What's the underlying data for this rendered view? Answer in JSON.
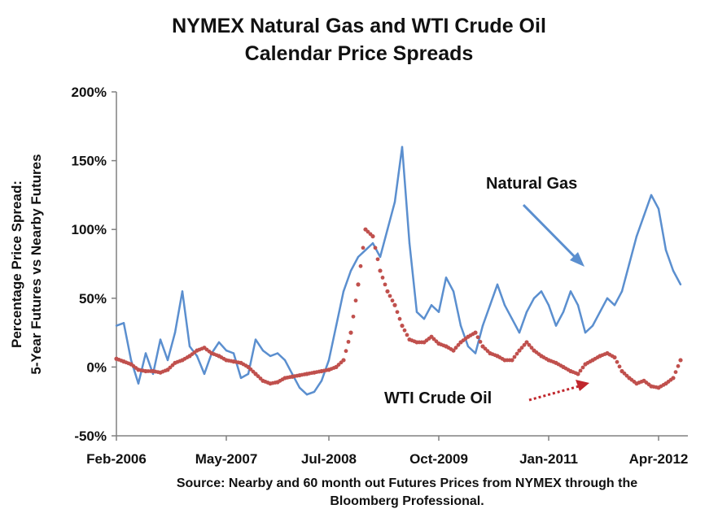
{
  "title_line1": "NYMEX Natural Gas and WTI Crude Oil",
  "title_line2": "Calendar Price Spreads",
  "source_line1": "Source:  Nearby and 60 month out Futures Prices from NYMEX through the",
  "source_line2": "Bloomberg Professional.",
  "colors": {
    "natural_gas": "#5b8fcf",
    "wti": "#c0504d",
    "wti_label": "#c0262c",
    "axis": "#808080"
  },
  "chart_data": {
    "type": "line",
    "title": "NYMEX Natural Gas and WTI Crude Oil Calendar Price Spreads",
    "ylabel_line1": "Percentage Price Spread:",
    "ylabel_line2": "5-Year Futures vs Nearby Futures",
    "xlabel": "",
    "ylim": [
      -50,
      200
    ],
    "ylim_units": "percent",
    "yticks": [
      -50,
      0,
      50,
      100,
      150,
      200
    ],
    "ytick_labels": [
      "-50%",
      "0%",
      "50%",
      "100%",
      "150%",
      "200%"
    ],
    "xlim": [
      "2006-02",
      "2012-08"
    ],
    "xticks": [
      "2006-02",
      "2007-05",
      "2008-07",
      "2009-10",
      "2011-01",
      "2012-04"
    ],
    "xtick_labels": [
      "Feb-2006",
      "May-2007",
      "Jul-2008",
      "Oct-2009",
      "Jan-2011",
      "Apr-2012"
    ],
    "grid": false,
    "legend": "none",
    "annotations": [
      {
        "text": "Natural Gas",
        "points_to": "Natural Gas series near Jul-2011",
        "arrow": "solid"
      },
      {
        "text": "WTI Crude Oil",
        "points_to": "WTI Crude Oil series near Sep-2011",
        "arrow": "dotted"
      }
    ],
    "series": [
      {
        "name": "Natural Gas",
        "style": "line",
        "x": [
          "2006-02",
          "2006-03",
          "2006-04",
          "2006-05",
          "2006-06",
          "2006-07",
          "2006-08",
          "2006-09",
          "2006-10",
          "2006-11",
          "2006-12",
          "2007-01",
          "2007-02",
          "2007-03",
          "2007-04",
          "2007-05",
          "2007-06",
          "2007-07",
          "2007-08",
          "2007-09",
          "2007-10",
          "2007-11",
          "2007-12",
          "2008-01",
          "2008-02",
          "2008-03",
          "2008-04",
          "2008-05",
          "2008-06",
          "2008-07",
          "2008-08",
          "2008-09",
          "2008-10",
          "2008-11",
          "2008-12",
          "2009-01",
          "2009-02",
          "2009-03",
          "2009-04",
          "2009-05",
          "2009-06",
          "2009-07",
          "2009-08",
          "2009-09",
          "2009-10",
          "2009-11",
          "2009-12",
          "2010-01",
          "2010-02",
          "2010-03",
          "2010-04",
          "2010-05",
          "2010-06",
          "2010-07",
          "2010-08",
          "2010-09",
          "2010-10",
          "2010-11",
          "2010-12",
          "2011-01",
          "2011-02",
          "2011-03",
          "2011-04",
          "2011-05",
          "2011-06",
          "2011-07",
          "2011-08",
          "2011-09",
          "2011-10",
          "2011-11",
          "2011-12",
          "2012-01",
          "2012-02",
          "2012-03",
          "2012-04",
          "2012-05",
          "2012-06",
          "2012-07"
        ],
        "values": [
          30,
          32,
          5,
          -12,
          10,
          -5,
          20,
          5,
          25,
          55,
          15,
          8,
          -5,
          10,
          18,
          12,
          10,
          -8,
          -5,
          20,
          12,
          8,
          10,
          5,
          -5,
          -15,
          -20,
          -18,
          -10,
          5,
          30,
          55,
          70,
          80,
          85,
          90,
          80,
          100,
          120,
          160,
          90,
          40,
          35,
          45,
          40,
          65,
          55,
          30,
          15,
          10,
          30,
          45,
          60,
          45,
          35,
          25,
          40,
          50,
          55,
          45,
          30,
          40,
          55,
          45,
          25,
          30,
          40,
          50,
          45,
          55,
          75,
          95,
          110,
          125,
          115,
          85,
          70,
          60
        ]
      },
      {
        "name": "WTI Crude Oil",
        "style": "dots",
        "x": [
          "2006-02",
          "2006-03",
          "2006-04",
          "2006-05",
          "2006-06",
          "2006-07",
          "2006-08",
          "2006-09",
          "2006-10",
          "2006-11",
          "2006-12",
          "2007-01",
          "2007-02",
          "2007-03",
          "2007-04",
          "2007-05",
          "2007-06",
          "2007-07",
          "2007-08",
          "2007-09",
          "2007-10",
          "2007-11",
          "2007-12",
          "2008-01",
          "2008-02",
          "2008-03",
          "2008-04",
          "2008-05",
          "2008-06",
          "2008-07",
          "2008-08",
          "2008-09",
          "2008-10",
          "2008-11",
          "2008-12",
          "2009-01",
          "2009-02",
          "2009-03",
          "2009-04",
          "2009-05",
          "2009-06",
          "2009-07",
          "2009-08",
          "2009-09",
          "2009-10",
          "2009-11",
          "2009-12",
          "2010-01",
          "2010-02",
          "2010-03",
          "2010-04",
          "2010-05",
          "2010-06",
          "2010-07",
          "2010-08",
          "2010-09",
          "2010-10",
          "2010-11",
          "2010-12",
          "2011-01",
          "2011-02",
          "2011-03",
          "2011-04",
          "2011-05",
          "2011-06",
          "2011-07",
          "2011-08",
          "2011-09",
          "2011-10",
          "2011-11",
          "2011-12",
          "2012-01",
          "2012-02",
          "2012-03",
          "2012-04",
          "2012-05",
          "2012-06",
          "2012-07"
        ],
        "values": [
          6,
          4,
          2,
          -2,
          -3,
          -3,
          -4,
          -2,
          3,
          5,
          8,
          12,
          14,
          10,
          8,
          5,
          4,
          3,
          0,
          -5,
          -10,
          -12,
          -11,
          -8,
          -7,
          -6,
          -5,
          -4,
          -3,
          -2,
          0,
          5,
          25,
          60,
          100,
          95,
          70,
          55,
          45,
          30,
          20,
          18,
          18,
          22,
          17,
          15,
          12,
          18,
          22,
          25,
          15,
          10,
          8,
          5,
          5,
          12,
          18,
          12,
          8,
          5,
          3,
          0,
          -3,
          -5,
          2,
          5,
          8,
          10,
          7,
          -3,
          -8,
          -12,
          -10,
          -14,
          -15,
          -12,
          -8,
          5
        ]
      }
    ]
  }
}
